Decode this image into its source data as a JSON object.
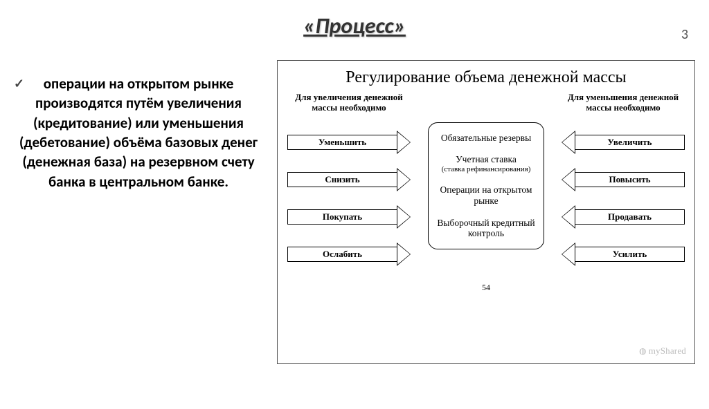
{
  "page_number": "3",
  "title": "«Процесс»",
  "bullet_text": "операции на открытом рынке производятся путём увеличения (кредитование) или уменьшения (дебетование) объёма базовых денег (денежная база) на резервном счету банка в центральном банке.",
  "diagram": {
    "type": "flowchart",
    "title": "Регулирование объема денежной массы",
    "left_header": "Для увеличения денежной массы необходимо",
    "right_header": "Для уменьшения денежной массы необходимо",
    "left_arrows": [
      "Уменьшить",
      "Снизить",
      "Покупать",
      "Ослабить"
    ],
    "right_arrows": [
      "Увеличить",
      "Повысить",
      "Продавать",
      "Усилить"
    ],
    "center_items": [
      {
        "main": "Обязательные резервы",
        "sub": ""
      },
      {
        "main": "Учетная ставка",
        "sub": "(ставка рефинансирования)"
      },
      {
        "main": "Операции на открытом рынке",
        "sub": ""
      },
      {
        "main": "Выборочный кредитный контроль",
        "sub": ""
      }
    ],
    "inner_page": "54",
    "colors": {
      "border": "#000000",
      "background": "#ffffff",
      "text": "#000000"
    },
    "title_fontsize": 24,
    "header_fontsize": 13,
    "arrow_fontsize": 13,
    "center_fontsize": 13
  },
  "watermark": "myShared"
}
